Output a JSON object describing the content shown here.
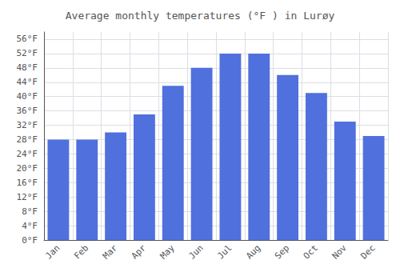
{
  "chart_data": {
    "type": "bar",
    "title": "Average monthly temperatures (°F ) in Lurøy",
    "categories": [
      "Jan",
      "Feb",
      "Mar",
      "Apr",
      "May",
      "Jun",
      "Jul",
      "Aug",
      "Sep",
      "Oct",
      "Nov",
      "Dec"
    ],
    "values": [
      28,
      28,
      30,
      35,
      43,
      48,
      52,
      52,
      46,
      41,
      33,
      29
    ],
    "ylim": [
      0,
      58
    ],
    "yticks": [
      {
        "value": 0,
        "label": "0°F"
      },
      {
        "value": 4,
        "label": "4°F"
      },
      {
        "value": 8,
        "label": "8°F"
      },
      {
        "value": 12,
        "label": "12°F"
      },
      {
        "value": 16,
        "label": "16°F"
      },
      {
        "value": 20,
        "label": "20°F"
      },
      {
        "value": 24,
        "label": "24°F"
      },
      {
        "value": 28,
        "label": "28°F"
      },
      {
        "value": 32,
        "label": "32°F"
      },
      {
        "value": 36,
        "label": "36°F"
      },
      {
        "value": 40,
        "label": "40°F"
      },
      {
        "value": 44,
        "label": "44°F"
      },
      {
        "value": 48,
        "label": "48°F"
      },
      {
        "value": 52,
        "label": "52°F"
      },
      {
        "value": 56,
        "label": "56°F"
      }
    ],
    "grid": true
  }
}
